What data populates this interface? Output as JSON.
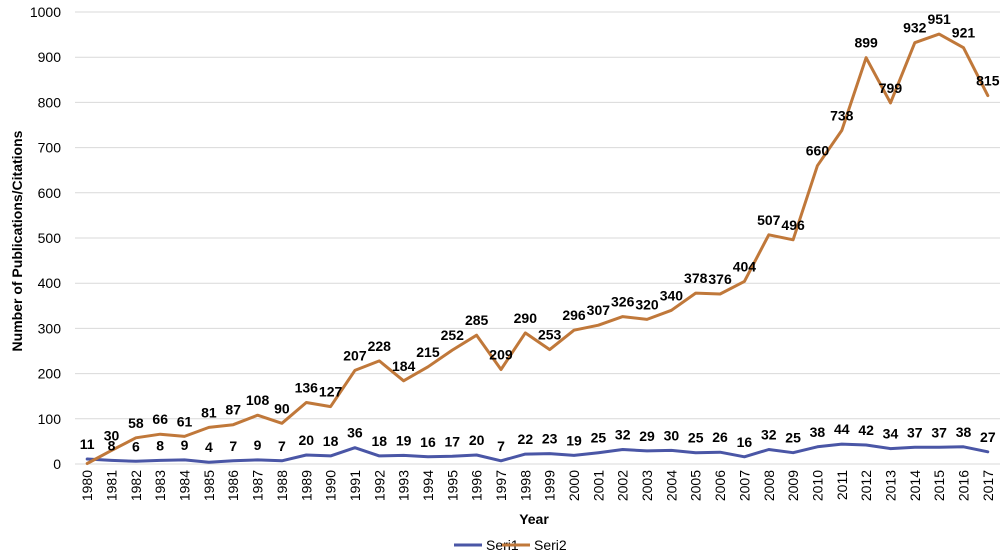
{
  "chart_data": {
    "type": "line",
    "title": "",
    "xlabel": "Year",
    "ylabel": "Number of Publications/Citations",
    "ylim": [
      0,
      1000
    ],
    "yticks": [
      0,
      100,
      200,
      300,
      400,
      500,
      600,
      700,
      800,
      900,
      1000
    ],
    "grid": true,
    "legend_position": "bottom",
    "categories": [
      "1980",
      "1981",
      "1982",
      "1983",
      "1984",
      "1985",
      "1986",
      "1987",
      "1988",
      "1989",
      "1990",
      "1991",
      "1992",
      "1993",
      "1994",
      "1995",
      "1996",
      "1997",
      "1998",
      "1999",
      "2000",
      "2001",
      "2002",
      "2003",
      "2004",
      "2005",
      "2006",
      "2007",
      "2008",
      "2009",
      "2010",
      "2011",
      "2012",
      "2013",
      "2014",
      "2015",
      "2016",
      "2017"
    ],
    "series": [
      {
        "name": "Seri1",
        "color": "#4a56a6",
        "values": [
          11,
          8,
          6,
          8,
          9,
          4,
          7,
          9,
          7,
          20,
          18,
          36,
          18,
          19,
          16,
          17,
          20,
          7,
          22,
          23,
          19,
          25,
          32,
          29,
          30,
          25,
          26,
          16,
          32,
          25,
          38,
          44,
          42,
          34,
          37,
          37,
          38,
          27
        ]
      },
      {
        "name": "Seri2",
        "color": "#c0783a",
        "values": [
          1,
          30,
          58,
          66,
          61,
          81,
          87,
          108,
          90,
          136,
          127,
          207,
          228,
          184,
          215,
          252,
          285,
          209,
          290,
          253,
          296,
          307,
          326,
          320,
          340,
          378,
          376,
          404,
          507,
          496,
          660,
          738,
          899,
          799,
          932,
          951,
          921,
          815
        ]
      }
    ],
    "data_labels": {
      "Seri1": [
        "11",
        "8",
        "6",
        "8",
        "9",
        "4",
        "7",
        "9",
        "7",
        "20",
        "18",
        "36",
        "18",
        "19",
        "16",
        "17",
        "20",
        "7",
        "22",
        "23",
        "19",
        "25",
        "32",
        "29",
        "30",
        "25",
        "26",
        "16",
        "32",
        "25",
        "38",
        "44",
        "42",
        "34",
        "37",
        "37",
        "38",
        "27"
      ],
      "Seri2": [
        "",
        "30",
        "58",
        "66",
        "61",
        "81",
        "87",
        "108",
        "90",
        "136",
        "127",
        "207",
        "228",
        "184",
        "215",
        "252",
        "285",
        "209",
        "290",
        "253",
        "296",
        "307",
        "326",
        "320",
        "340",
        "378",
        "376",
        "404",
        "507",
        "496",
        "660",
        "738",
        "899",
        "799",
        "932",
        "951",
        "921",
        "815"
      ]
    }
  }
}
